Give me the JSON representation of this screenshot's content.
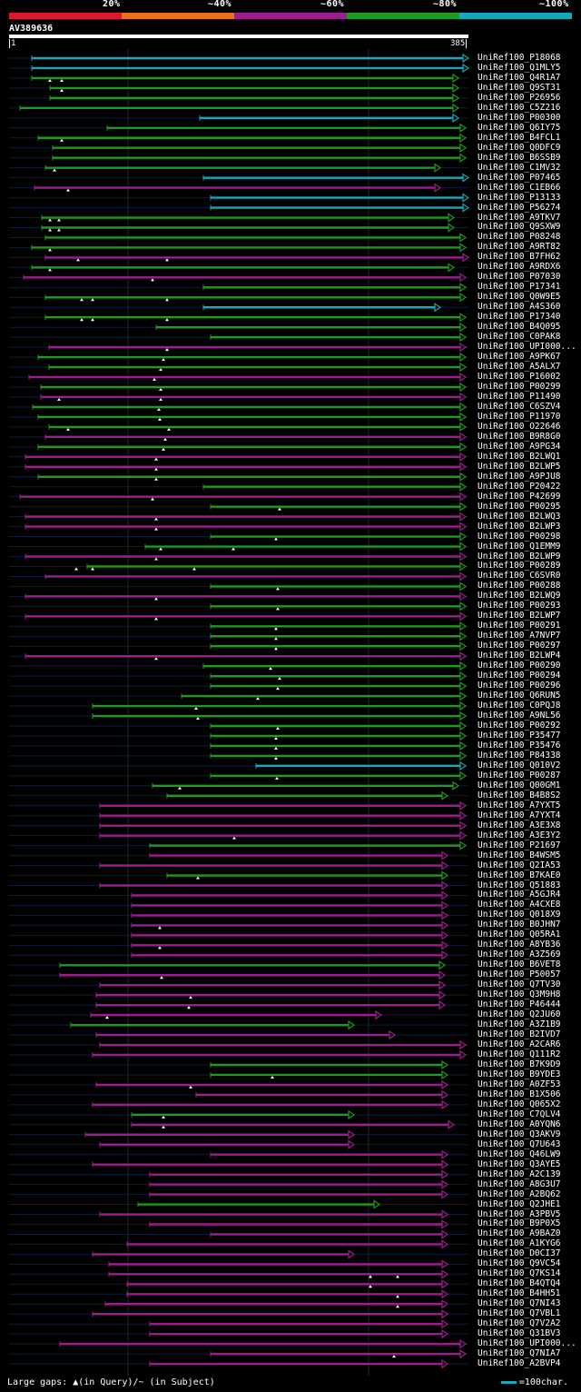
{
  "legend": {
    "labels": [
      "20%",
      "~40%",
      "~60%",
      "~80%",
      "~100%"
    ],
    "colors": [
      "#e0162b",
      "#e9701c",
      "#9c1e8e",
      "#1e9a1e",
      "#16a7b8"
    ]
  },
  "query": {
    "name": "AV389636",
    "start": "1",
    "end": "385"
  },
  "hits": [
    {
      "id": "UniRef100_P18068",
      "c": 4
    },
    {
      "id": "UniRef100_Q1MLY5",
      "c": 4
    },
    {
      "id": "UniRef100_Q4R1A7",
      "c": 3
    },
    {
      "id": "UniRef100_Q9ST31",
      "c": 3
    },
    {
      "id": "UniRef100_P26956",
      "c": 3
    },
    {
      "id": "UniRef100_C5Z216",
      "c": 3
    },
    {
      "id": "UniRef100_P00300",
      "c": 4
    },
    {
      "id": "UniRef100_Q6IY75",
      "c": 3
    },
    {
      "id": "UniRef100_B4FCL1",
      "c": 3
    },
    {
      "id": "UniRef100_Q0DFC9",
      "c": 3
    },
    {
      "id": "UniRef100_B6SSB9",
      "c": 3
    },
    {
      "id": "UniRef100_C1MV32",
      "c": 3
    },
    {
      "id": "UniRef100_P07465",
      "c": 4
    },
    {
      "id": "UniRef100_C1EB66",
      "c": 2
    },
    {
      "id": "UniRef100_P13133",
      "c": 4
    },
    {
      "id": "UniRef100_P56274",
      "c": 4
    },
    {
      "id": "UniRef100_A9TKV7",
      "c": 3
    },
    {
      "id": "UniRef100_Q9SXW9",
      "c": 3
    },
    {
      "id": "UniRef100_P08248",
      "c": 3
    },
    {
      "id": "UniRef100_A9RT82",
      "c": 3
    },
    {
      "id": "UniRef100_B7FH62",
      "c": 2
    },
    {
      "id": "UniRef100_A9RDX6",
      "c": 3
    },
    {
      "id": "UniRef100_P07030",
      "c": 2
    },
    {
      "id": "UniRef100_P17341",
      "c": 3
    },
    {
      "id": "UniRef100_Q0W9E5",
      "c": 3
    },
    {
      "id": "UniRef100_A4S360",
      "c": 4
    },
    {
      "id": "UniRef100_P17340",
      "c": 3
    },
    {
      "id": "UniRef100_B4Q095",
      "c": 3
    },
    {
      "id": "UniRef100_C0PAK8",
      "c": 3
    },
    {
      "id": "UniRef100_UPI000...",
      "c": 2
    },
    {
      "id": "UniRef100_A9PK67",
      "c": 3
    },
    {
      "id": "UniRef100_A5ALX7",
      "c": 3
    },
    {
      "id": "UniRef100_P16002",
      "c": 2
    },
    {
      "id": "UniRef100_P00299",
      "c": 3
    },
    {
      "id": "UniRef100_P11490",
      "c": 2
    },
    {
      "id": "UniRef100_C6SZV4",
      "c": 3
    },
    {
      "id": "UniRef100_P11970",
      "c": 3
    },
    {
      "id": "UniRef100_O22646",
      "c": 3
    },
    {
      "id": "UniRef100_B9R8G0",
      "c": 2
    },
    {
      "id": "UniRef100_A9PG34",
      "c": 3
    },
    {
      "id": "UniRef100_B2LWQ1",
      "c": 2
    },
    {
      "id": "UniRef100_B2LWP5",
      "c": 2
    },
    {
      "id": "UniRef100_A9PJU8",
      "c": 3
    },
    {
      "id": "UniRef100_P20422",
      "c": 3
    },
    {
      "id": "UniRef100_P42699",
      "c": 2
    },
    {
      "id": "UniRef100_P00295",
      "c": 3
    },
    {
      "id": "UniRef100_B2LWQ3",
      "c": 2
    },
    {
      "id": "UniRef100_B2LWP3",
      "c": 2
    },
    {
      "id": "UniRef100_P00298",
      "c": 3
    },
    {
      "id": "UniRef100_Q1EMM9",
      "c": 3
    },
    {
      "id": "UniRef100_B2LWP9",
      "c": 2
    },
    {
      "id": "UniRef100_P00289",
      "c": 3
    },
    {
      "id": "UniRef100_C6SVR0",
      "c": 2
    },
    {
      "id": "UniRef100_P00288",
      "c": 3
    },
    {
      "id": "UniRef100_B2LWQ9",
      "c": 2
    },
    {
      "id": "UniRef100_P00293",
      "c": 3
    },
    {
      "id": "UniRef100_B2LWP7",
      "c": 2
    },
    {
      "id": "UniRef100_P00291",
      "c": 3
    },
    {
      "id": "UniRef100_A7NVP7",
      "c": 3
    },
    {
      "id": "UniRef100_P00297",
      "c": 3
    },
    {
      "id": "UniRef100_B2LWP4",
      "c": 2
    },
    {
      "id": "UniRef100_P00290",
      "c": 3
    },
    {
      "id": "UniRef100_P00294",
      "c": 3
    },
    {
      "id": "UniRef100_P00296",
      "c": 3
    },
    {
      "id": "UniRef100_Q6RUN5",
      "c": 3
    },
    {
      "id": "UniRef100_C0PQJ8",
      "c": 3
    },
    {
      "id": "UniRef100_A9NL56",
      "c": 3
    },
    {
      "id": "UniRef100_P00292",
      "c": 3
    },
    {
      "id": "UniRef100_P35477",
      "c": 3
    },
    {
      "id": "UniRef100_P35476",
      "c": 3
    },
    {
      "id": "UniRef100_P84338",
      "c": 3
    },
    {
      "id": "UniRef100_Q010V2",
      "c": 4
    },
    {
      "id": "UniRef100_P00287",
      "c": 3
    },
    {
      "id": "UniRef100_Q00GM1",
      "c": 3
    },
    {
      "id": "UniRef100_B4B8S2",
      "c": 3
    },
    {
      "id": "UniRef100_A7YXT5",
      "c": 2
    },
    {
      "id": "UniRef100_A7YXT4",
      "c": 2
    },
    {
      "id": "UniRef100_A3E3X8",
      "c": 2
    },
    {
      "id": "UniRef100_A3E3Y2",
      "c": 2
    },
    {
      "id": "UniRef100_P21697",
      "c": 3
    },
    {
      "id": "UniRef100_B4WSM5",
      "c": 2
    },
    {
      "id": "UniRef100_Q2IA53",
      "c": 2
    },
    {
      "id": "UniRef100_B7KAE0",
      "c": 3
    },
    {
      "id": "UniRef100_Q51883",
      "c": 2
    },
    {
      "id": "UniRef100_A5GJR4",
      "c": 2
    },
    {
      "id": "UniRef100_A4CXE8",
      "c": 2
    },
    {
      "id": "UniRef100_Q018X9",
      "c": 2
    },
    {
      "id": "UniRef100_B0JHN7",
      "c": 2
    },
    {
      "id": "UniRef100_Q05RA1",
      "c": 2
    },
    {
      "id": "UniRef100_A8YB36",
      "c": 2
    },
    {
      "id": "UniRef100_A3Z569",
      "c": 2
    },
    {
      "id": "UniRef100_B6VET8",
      "c": 3
    },
    {
      "id": "UniRef100_P50057",
      "c": 2
    },
    {
      "id": "UniRef100_Q7TV30",
      "c": 2
    },
    {
      "id": "UniRef100_Q3M9H8",
      "c": 2
    },
    {
      "id": "UniRef100_P46444",
      "c": 2
    },
    {
      "id": "UniRef100_Q2JU60",
      "c": 2
    },
    {
      "id": "UniRef100_A3Z1B9",
      "c": 3
    },
    {
      "id": "UniRef100_B2IVD7",
      "c": 2
    },
    {
      "id": "UniRef100_A2CAR6",
      "c": 2
    },
    {
      "id": "UniRef100_Q111R2",
      "c": 2
    },
    {
      "id": "UniRef100_B7K9D9",
      "c": 3
    },
    {
      "id": "UniRef100_B9YDE3",
      "c": 3
    },
    {
      "id": "UniRef100_A0ZF53",
      "c": 2
    },
    {
      "id": "UniRef100_B1X506",
      "c": 2
    },
    {
      "id": "UniRef100_Q065X2",
      "c": 2
    },
    {
      "id": "UniRef100_C7QLV4",
      "c": 3
    },
    {
      "id": "UniRef100_A0YQN6",
      "c": 2
    },
    {
      "id": "UniRef100_Q3AKV9",
      "c": 2
    },
    {
      "id": "UniRef100_Q7U643",
      "c": 2
    },
    {
      "id": "UniRef100_Q46LW9",
      "c": 2
    },
    {
      "id": "UniRef100_Q3AYE5",
      "c": 2
    },
    {
      "id": "UniRef100_A2C139",
      "c": 2
    },
    {
      "id": "UniRef100_A8G3U7",
      "c": 2
    },
    {
      "id": "UniRef100_A2BQ62",
      "c": 2
    },
    {
      "id": "UniRef100_Q2JHE1",
      "c": 3
    },
    {
      "id": "UniRef100_A3PBV5",
      "c": 2
    },
    {
      "id": "UniRef100_B9P0X5",
      "c": 2
    },
    {
      "id": "UniRef100_A9BAZ0",
      "c": 2
    },
    {
      "id": "UniRef100_A1KYG6",
      "c": 2
    },
    {
      "id": "UniRef100_D0CI37",
      "c": 2
    },
    {
      "id": "UniRef100_Q9VC54",
      "c": 2
    },
    {
      "id": "UniRef100_Q7KS14",
      "c": 2
    },
    {
      "id": "UniRef100_B4QTQ4",
      "c": 2
    },
    {
      "id": "UniRef100_B4HH51",
      "c": 2
    },
    {
      "id": "UniRef100_Q7NI43",
      "c": 2
    },
    {
      "id": "UniRef100_Q7VBL1",
      "c": 2
    },
    {
      "id": "UniRef100_Q7V2A2",
      "c": 2
    },
    {
      "id": "UniRef100_Q31BV3",
      "c": 2
    },
    {
      "id": "UniRef100_UPI000...",
      "c": 2
    },
    {
      "id": "UniRef100_Q7NIA7",
      "c": 2
    },
    {
      "id": "UniRef100_A2BVP4",
      "c": 2
    }
  ],
  "footer": {
    "gaps_text": "Large gaps: ▲(in Query)/~ (in Subject)",
    "scale_text": "=100char."
  }
}
